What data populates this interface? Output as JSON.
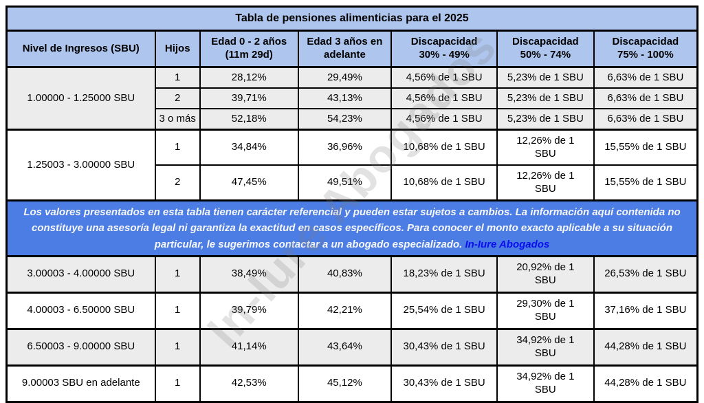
{
  "title": "Tabla de pensiones alimenticias para el 2025",
  "watermark": "In-Iure Abogados",
  "colors": {
    "header_blue": "#aec6ee",
    "notice_blue": "#4b7de4",
    "link_blue": "#0a0dee",
    "row_gray": "#ececec",
    "border": "#000000"
  },
  "header": {
    "col_income": "Nivel de Ingresos (SBU)",
    "col_children": "Hijos",
    "col_age_0_2": "Edad 0 - 2 años\n(11m 29d)",
    "col_age_3_plus": "Edad 3 años en\nadelante",
    "col_dis_30_49": "Discapacidad\n30% - 49%",
    "col_dis_50_74": "Discapacidad\n50% - 74%",
    "col_dis_75_100": "Discapacidad\n75% - 100%"
  },
  "disclaimer": {
    "text": "Los valores presentados en esta tabla tienen carácter referencial y pueden estar sujetos a cambios. La información aquí contenida no constituye una asesoría legal ni garantiza la exactitud en casos específicos. Para conocer el monto exacto aplicable a su situación particular, le sugerimos contactar a un abogado especializado. ",
    "link_label": "In-Iure Abogados"
  },
  "sections": [
    {
      "income": "1.00000 - 1.25000 SBU",
      "rows": [
        {
          "hijos": "1",
          "edad_0_2": "28,12%",
          "edad_3": "29,49%",
          "dis_30": "4,56% de 1 SBU",
          "dis_50": "5,23% de 1 SBU",
          "dis_75": "6,63% de 1 SBU"
        },
        {
          "hijos": "2",
          "edad_0_2": "39,71%",
          "edad_3": "43,13%",
          "dis_30": "4,56% de 1 SBU",
          "dis_50": "5,23% de 1 SBU",
          "dis_75": "6,63% de 1 SBU"
        },
        {
          "hijos": "3 o más",
          "edad_0_2": "52,18%",
          "edad_3": "54,23%",
          "dis_30": "4,56% de 1 SBU",
          "dis_50": "5,23% de 1 SBU",
          "dis_75": "6,63% de 1 SBU"
        }
      ]
    },
    {
      "income": "1.25003 - 3.00000 SBU",
      "rows": [
        {
          "hijos": "1",
          "edad_0_2": "34,84%",
          "edad_3": "36,96%",
          "dis_30": "10,68% de 1 SBU",
          "dis_50": "12,26% de 1\nSBU",
          "dis_75": "15,55% de 1 SBU"
        },
        {
          "hijos": "2",
          "edad_0_2": "47,45%",
          "edad_3": "49,51%",
          "dis_30": "10,68% de 1 SBU",
          "dis_50": "12,26% de 1\nSBU",
          "dis_75": "15,55% de 1 SBU"
        }
      ]
    },
    {
      "income": "3.00003 - 4.00000 SBU",
      "rows": [
        {
          "hijos": "1",
          "edad_0_2": "38,49%",
          "edad_3": "40,83%",
          "dis_30": "18,23% de 1 SBU",
          "dis_50": "20,92% de 1\nSBU",
          "dis_75": "26,53% de 1 SBU"
        }
      ]
    },
    {
      "income": "4.00003 - 6.50000 SBU",
      "rows": [
        {
          "hijos": "1",
          "edad_0_2": "39,79%",
          "edad_3": "42,21%",
          "dis_30": "25,54% de 1 SBU",
          "dis_50": "29,30% de 1\nSBU",
          "dis_75": "37,16% de 1 SBU"
        }
      ]
    },
    {
      "income": "6.50003 - 9.00000 SBU",
      "rows": [
        {
          "hijos": "1",
          "edad_0_2": "41,14%",
          "edad_3": "43,64%",
          "dis_30": "30,43% de 1 SBU",
          "dis_50": "34,92% de 1\nSBU",
          "dis_75": "44,28% de 1 SBU"
        }
      ]
    },
    {
      "income": "9.00003 SBU en adelante",
      "rows": [
        {
          "hijos": "1",
          "edad_0_2": "42,53%",
          "edad_3": "45,12%",
          "dis_30": "30,43% de 1 SBU",
          "dis_50": "34,92% de 1\nSBU",
          "dis_75": "44,28% de 1 SBU"
        }
      ]
    }
  ]
}
